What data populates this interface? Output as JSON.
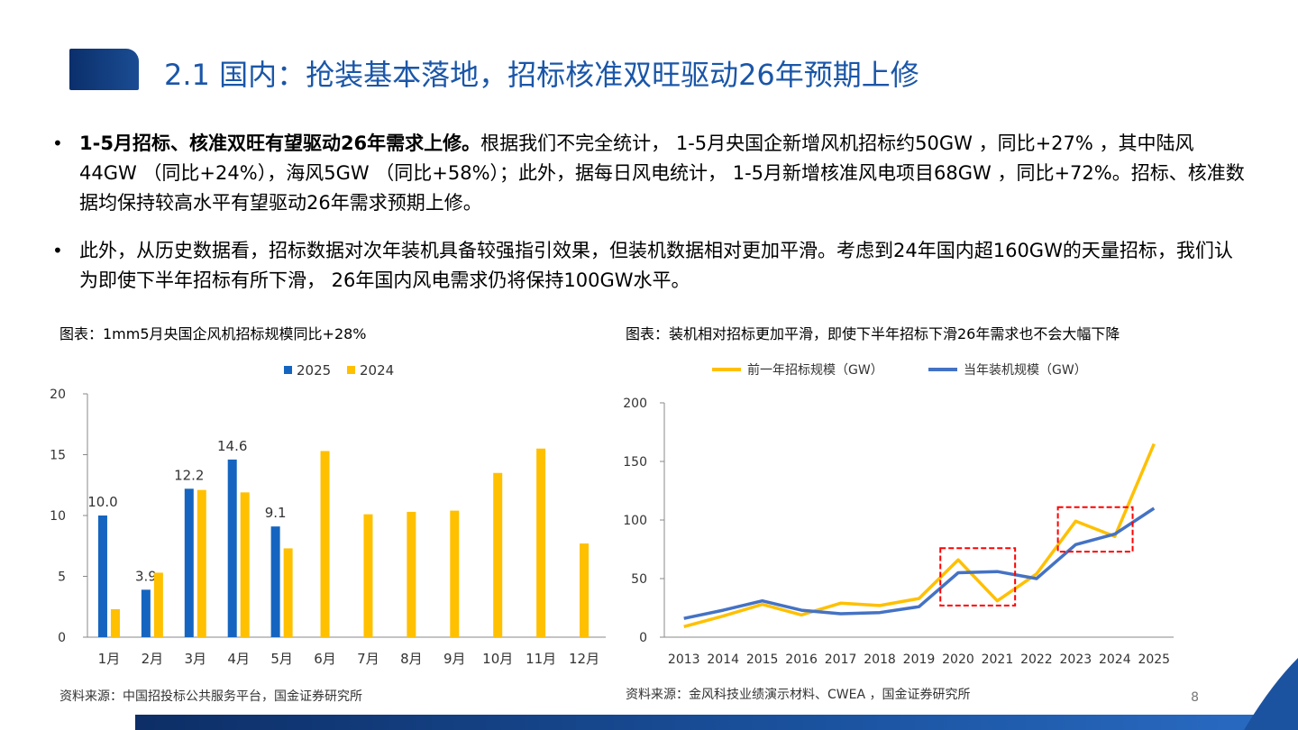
{
  "header": {
    "title": "2.1 国内：抢装基本落地，招标核准双旺驱动26年预期上修"
  },
  "bullets": [
    {
      "bold": "1-5月招标、核准双旺有望驱动26年需求上修。",
      "text": "根据我们不完全统计， 1-5月央国企新增风机招标约50GW ，同比+27% ，其中陆风44GW （同比+24%），海风5GW （同比+58%）；此外，据每日风电统计， 1-5月新增核准风电项目68GW ，同比+72%。招标、核准数据均保持较高水平有望驱动26年需求预期上修。"
    },
    {
      "bold": "",
      "text": "此外，从历史数据看，招标数据对次年装机具备较强指引效果，但装机数据相对更加平滑。考虑到24年国内超160GW的天量招标，我们认为即使下半年招标有所下滑， 26年国内风电需求仍将保持100GW水平。"
    }
  ],
  "figure_left": {
    "caption": "图表：1mm5月央国企风机招标规模同比+28%",
    "source": "资料来源：中国招投标公共服务平台，国金证券研究所"
  },
  "figure_right": {
    "caption": "图表：装机相对招标更加平滑，即使下半年招标下滑26年需求也不会大幅下降",
    "source": "资料来源：金风科技业绩演示材料、CWEA ，国金证券研究所"
  },
  "page_number": "8",
  "colors": {
    "blue": "#1565c0",
    "gold": "#ffc000",
    "line_blue": "#4472c4",
    "title": "#1a56a8",
    "highlight": "#ff0000"
  },
  "chart_data": [
    {
      "type": "bar",
      "categories": [
        "1月",
        "2月",
        "3月",
        "4月",
        "5月",
        "6月",
        "7月",
        "8月",
        "9月",
        "10月",
        "11月",
        "12月"
      ],
      "series": [
        {
          "name": "2025",
          "values": [
            10.0,
            3.9,
            12.2,
            14.6,
            9.1,
            null,
            null,
            null,
            null,
            null,
            null,
            null
          ],
          "color": "#1565c0"
        },
        {
          "name": "2024",
          "values": [
            2.3,
            5.3,
            12.1,
            11.9,
            7.3,
            15.3,
            10.1,
            10.3,
            10.4,
            13.5,
            15.5,
            7.7
          ],
          "color": "#ffc000"
        }
      ],
      "data_labels": {
        "2025": [
          "10.0",
          "3.9",
          "12.2",
          "14.6",
          "9.1"
        ]
      },
      "yticks": [
        "0",
        "5",
        "10",
        "15",
        "20"
      ],
      "ylim": [
        0,
        20
      ],
      "legend": "top-center",
      "grid": false
    },
    {
      "type": "line",
      "x": [
        "2013",
        "2014",
        "2015",
        "2016",
        "2017",
        "2018",
        "2019",
        "2020",
        "2021",
        "2022",
        "2023",
        "2024",
        "2025"
      ],
      "series": [
        {
          "name": "前一年招标规模（GW）",
          "values": [
            9,
            18,
            28,
            19,
            29,
            27,
            33,
            66,
            31,
            54,
            99,
            86,
            165
          ],
          "color": "#ffc000"
        },
        {
          "name": "当年装机规模（GW）",
          "values": [
            16,
            23,
            31,
            23,
            20,
            21,
            26,
            55,
            56,
            50,
            79,
            88,
            110
          ],
          "color": "#4472c4"
        }
      ],
      "yticks": [
        "0",
        "50",
        "100",
        "150",
        "200"
      ],
      "ylim": [
        0,
        200
      ],
      "highlights": [
        {
          "x_from": "2020",
          "x_to": "2021",
          "y_from": 27,
          "y_to": 76
        },
        {
          "x_from": "2023",
          "x_to": "2024",
          "y_from": 73,
          "y_to": 111
        }
      ],
      "legend": "top-center",
      "grid": false
    }
  ]
}
